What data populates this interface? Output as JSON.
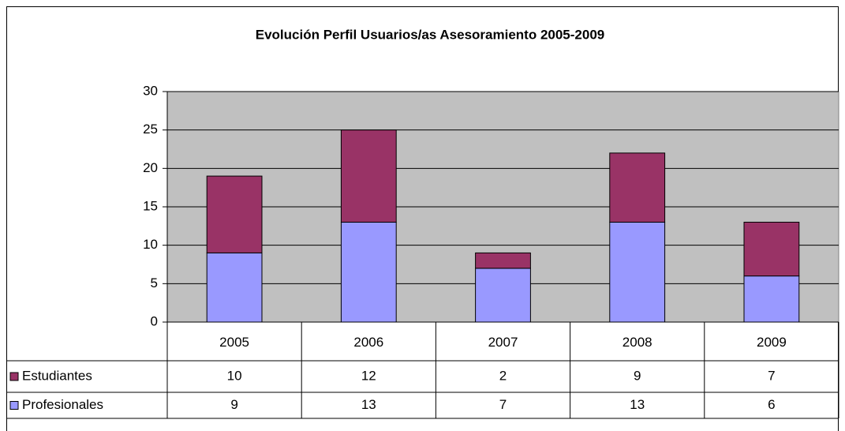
{
  "chart_data": {
    "type": "stacked_bar",
    "title": "Evolución Perfil Usuarios/as Asesoramiento 2005-2009",
    "categories": [
      "2005",
      "2006",
      "2007",
      "2008",
      "2009"
    ],
    "series": [
      {
        "name": "Estudiantes",
        "color": "#993366",
        "values": [
          10,
          12,
          2,
          9,
          7
        ]
      },
      {
        "name": "Profesionales",
        "color": "#9999ff",
        "values": [
          9,
          13,
          7,
          13,
          6
        ]
      }
    ],
    "ylim": [
      0,
      30
    ],
    "yticks": [
      0,
      5,
      10,
      15,
      20,
      25,
      30
    ],
    "grid": true
  }
}
